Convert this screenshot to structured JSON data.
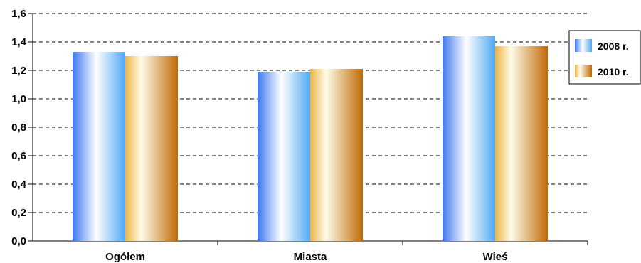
{
  "chart_data": {
    "type": "bar",
    "categories": [
      "Ogółem",
      "Miasta",
      "Wieś"
    ],
    "series": [
      {
        "name": "2008 r.",
        "values": [
          1.33,
          1.19,
          1.44
        ],
        "color": "#4A86F0"
      },
      {
        "name": "2010 r.",
        "values": [
          1.3,
          1.21,
          1.37
        ],
        "color": "#C8780A"
      }
    ],
    "title": "",
    "xlabel": "",
    "ylabel": "",
    "ylim": [
      0,
      1.6
    ],
    "yticks": [
      "0,0",
      "0,2",
      "0,4",
      "0,6",
      "0,8",
      "1,0",
      "1,2",
      "1,4",
      "1,6"
    ],
    "grid": "dashed-horizontal",
    "legend_position": "right"
  }
}
